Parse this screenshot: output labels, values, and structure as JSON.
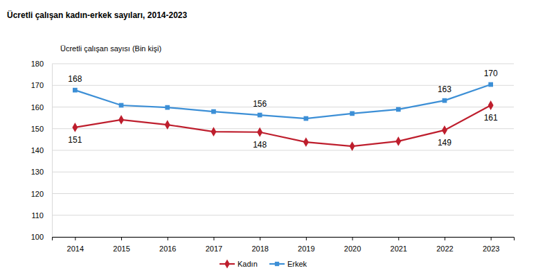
{
  "chart_data": {
    "type": "line",
    "title": "Ücretli çalışan kadın-erkek sayıları, 2014-2023",
    "y_label": "Ücretli çalışan sayısı (Bin kişi)",
    "categories": [
      "2014",
      "2015",
      "2016",
      "2017",
      "2018",
      "2019",
      "2020",
      "2021",
      "2022",
      "2023"
    ],
    "series": [
      {
        "name": "Kadın",
        "color": "#be1e2d",
        "marker": "diamond",
        "line_style": "solid",
        "values": [
          150.6,
          154.1,
          151.8,
          148.6,
          148.4,
          143.8,
          141.9,
          144.2,
          149.3,
          160.8
        ],
        "value_labels": [
          "151",
          null,
          null,
          null,
          "148",
          null,
          null,
          null,
          "149",
          "161"
        ]
      },
      {
        "name": "Erkek",
        "color": "#3c8fd6",
        "marker": "square",
        "line_style": "solid",
        "values": [
          167.8,
          160.8,
          159.8,
          157.9,
          156.3,
          154.7,
          157.0,
          158.9,
          163.0,
          170.4
        ],
        "value_labels": [
          "168",
          null,
          null,
          null,
          "156",
          null,
          null,
          null,
          "163",
          "170"
        ]
      }
    ],
    "ylim": [
      100,
      180
    ],
    "yticks": [
      100,
      110,
      120,
      130,
      140,
      150,
      160,
      170,
      180
    ],
    "grid": true,
    "legend": "bottom",
    "data_labels": true
  }
}
